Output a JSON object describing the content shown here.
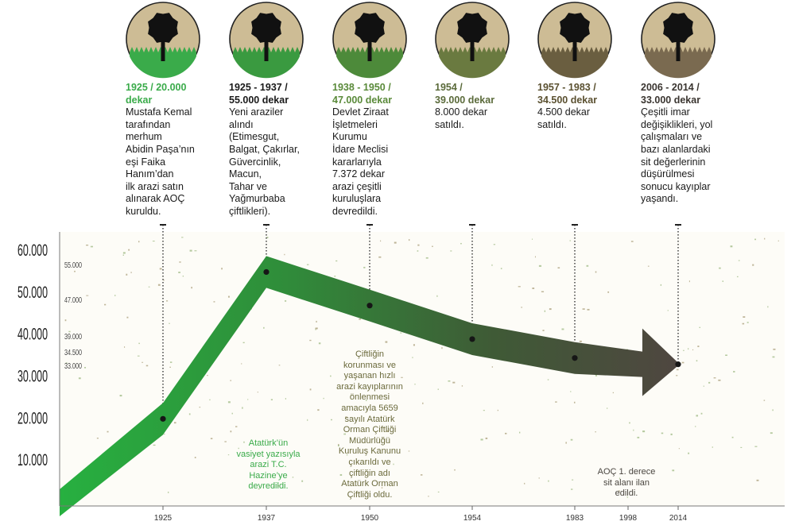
{
  "colors": {
    "green": "#3aab4a",
    "dark": "#4a4640",
    "tan": "#cdbc95",
    "text": "#1a1a1a",
    "note_green": "#3aab4a",
    "note_olive": "#6b6a3c"
  },
  "milestones": [
    {
      "title": "1925 / 20.000\ndekar",
      "desc": "Mustafa Kemal\ntarafından\nmerhum\nAbidin Paşa’nın\neşi Faika\nHanım’dan\nilk arazi satın\nalınarak AOÇ\nkuruldu.",
      "title_color": "#3aab4a",
      "grass": "#3aab4a"
    },
    {
      "title": "1925 - 1937 /\n55.000 dekar",
      "desc": "Yeni araziler\nalındı\n(Etimesgut,\nBalgat, Çakırlar,\nGüvercinlik,\nMacun,\nTahar ve\nYağmurbaba\nçiftlikleri).",
      "title_color": "#1a1a1a",
      "grass": "#3a9a40"
    },
    {
      "title": "1938 - 1950 /\n47.000 dekar",
      "desc": "Devlet Ziraat\nİşletmeleri\nKurumu\nİdare Meclisi\nkararlarıyla\n7.372 dekar\narazi çeşitli\nkuruluşlara\ndevredildi.",
      "title_color": "#5a8a3a",
      "grass": "#4d8a3a"
    },
    {
      "title": "1954 /\n39.000 dekar",
      "desc": "8.000 dekar\nsatıldı.",
      "title_color": "#5a6a3a",
      "grass": "#6a7a40"
    },
    {
      "title": "1957 - 1983 /\n34.500 dekar",
      "desc": "4.500 dekar\nsatıldı.",
      "title_color": "#5a5030",
      "grass": "#6a5e40"
    },
    {
      "title": "2006 - 2014 /\n33.000 dekar",
      "desc": "Çeşitli imar\ndeğişiklikleri, yol\nçalışmaları ve\nbazı alanlardaki\nsit değerlerinin\ndüşürülmesi\nsonucu kayıplar\nyaşandı.",
      "title_color": "#3a3530",
      "grass": "#7a6a50"
    }
  ],
  "notes": [
    {
      "text": "Atatürk’ün\nvasiyet yazısıyla\narazi T.C.\nHazine’ye\ndevredildi.",
      "color": "#3aab4a"
    },
    {
      "text": "Çiftliğin\nkorunması ve\nyaşanan hızlı\narazi kayıplarının\nönlenmesi\namacıyla 5659\nsayılı Atatürk\nOrman Çiftliği\nMüdürlüğü\nKuruluş Kanunu\nçıkarıldı ve\nçiftliğin adı\nAtatürk Orman\nÇiftliği oldu.",
      "color": "#6b6a3c"
    },
    {
      "text": "AOÇ 1. derece\nsit alanı ilan\nedildi.",
      "color": "#4a4640"
    }
  ],
  "chart_data": {
    "type": "line",
    "title": "",
    "xlabel": "",
    "ylabel": "",
    "x_ticks": [
      "1925",
      "1937",
      "1950",
      "1954",
      "1983",
      "1998",
      "2014"
    ],
    "y_ticks": [
      "10.000",
      "20.000",
      "30.000",
      "40.000",
      "50.000",
      "60.000"
    ],
    "value_labels": [
      "55.000",
      "47.000",
      "39.000",
      "34.500",
      "33.000"
    ],
    "series": [
      {
        "points": [
          {
            "x": "1925",
            "y": 20000
          },
          {
            "x": "1937",
            "y": 55000
          },
          {
            "x": "1950",
            "y": 47000
          },
          {
            "x": "1954",
            "y": 39000
          },
          {
            "x": "1983",
            "y": 34500
          },
          {
            "x": "2014",
            "y": 33000
          }
        ]
      }
    ],
    "ylim": [
      0,
      60000
    ],
    "grid": false,
    "legend": "none"
  }
}
